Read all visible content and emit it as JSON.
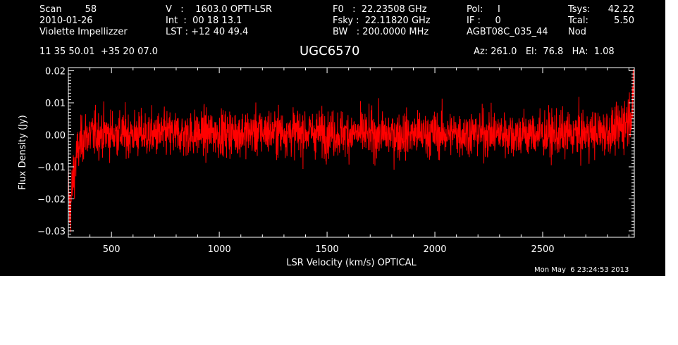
{
  "header": {
    "col1": [
      "Scan        58",
      "2010-01-26",
      "Violette Impellizzer"
    ],
    "col2": [
      "V   :    1603.0 OPTI-LSR",
      "Int  :  00 18 13.1",
      "LST : +12 40 49.4"
    ],
    "col3": [
      "F0   :  22.23508 GHz",
      "Fsky :  22.11820 GHz",
      "BW   : 200.0000 MHz"
    ],
    "col4": [
      "Pol:     I",
      "IF :     0",
      "AGBT08C_035_44"
    ],
    "col5": [
      "Tsys:",
      "Tcal:",
      "Nod"
    ],
    "col6": [
      "42.22",
      "5.50",
      ""
    ],
    "coords": "11 35 50.01  +35 20 07.0",
    "source": "UGC6570",
    "azel": "Az: 261.0   El:  76.8   HA:  1.08",
    "timestamp": "Mon May  6 23:24:53 2013"
  },
  "colors": {
    "background": "#000000",
    "axes": "#ffffff",
    "trace": "#ff0000"
  },
  "chart_data": {
    "type": "line",
    "title": "UGC6570",
    "xlabel": "LSR Velocity (km/s) OPTICAL",
    "ylabel": "Flux Density (Jy)",
    "xlim": [
      300,
      2925
    ],
    "ylim": [
      -0.032,
      0.021
    ],
    "xticks": [
      500,
      1000,
      1500,
      2000,
      2500
    ],
    "xtick_labels": [
      "500",
      "1000",
      "1500",
      "2000",
      "2500"
    ],
    "yticks": [
      0.02,
      0.01,
      0.0,
      -0.01,
      -0.02,
      -0.03
    ],
    "ytick_labels": [
      "0.02",
      "0.01",
      "0.00",
      "−0.01",
      "−0.02",
      "−0.03"
    ],
    "grid": false,
    "series": [
      {
        "color": "#ff0000",
        "noise_rms": 0.004,
        "profile": [
          [
            300,
            -0.016
          ],
          [
            306,
            -0.024
          ],
          [
            315,
            -0.019
          ],
          [
            325,
            -0.012
          ],
          [
            340,
            -0.006
          ],
          [
            360,
            -0.002
          ],
          [
            380,
            0.0
          ],
          [
            450,
            0.0005
          ],
          [
            700,
            0.0
          ],
          [
            1250,
            0.001
          ],
          [
            1800,
            0.0
          ],
          [
            2200,
            0.0005
          ],
          [
            2600,
            0.0
          ],
          [
            2840,
            0.001
          ],
          [
            2880,
            0.004
          ],
          [
            2900,
            0.006
          ],
          [
            2915,
            0.009
          ],
          [
            2925,
            0.012
          ]
        ]
      }
    ]
  }
}
